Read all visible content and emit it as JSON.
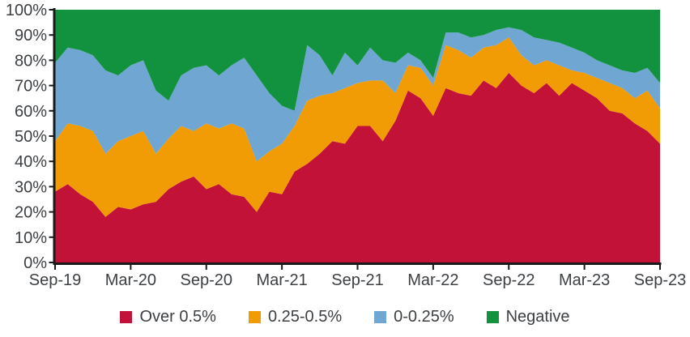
{
  "chart_data": {
    "type": "area",
    "stacked": true,
    "percent": true,
    "title": "",
    "xlabel": "",
    "ylabel": "",
    "ylim": [
      0,
      100
    ],
    "grid": false,
    "legend_position": "bottom",
    "axis_color": "#1a1a1a",
    "label_color": "#3c4043",
    "y_ticks": [
      "0%",
      "10%",
      "20%",
      "30%",
      "40%",
      "50%",
      "60%",
      "70%",
      "80%",
      "90%",
      "100%"
    ],
    "x_tick_labels": [
      "Sep-19",
      "Mar-20",
      "Sep-20",
      "Mar-21",
      "Sep-21",
      "Mar-22",
      "Sep-22",
      "Mar-23",
      "Sep-23"
    ],
    "x": [
      "Sep-19",
      "Oct-19",
      "Nov-19",
      "Dec-19",
      "Jan-20",
      "Feb-20",
      "Mar-20",
      "Apr-20",
      "May-20",
      "Jun-20",
      "Jul-20",
      "Aug-20",
      "Sep-20",
      "Oct-20",
      "Nov-20",
      "Dec-20",
      "Jan-21",
      "Feb-21",
      "Mar-21",
      "Apr-21",
      "May-21",
      "Jun-21",
      "Jul-21",
      "Aug-21",
      "Sep-21",
      "Oct-21",
      "Nov-21",
      "Dec-21",
      "Jan-22",
      "Feb-22",
      "Mar-22",
      "Apr-22",
      "May-22",
      "Jun-22",
      "Jul-22",
      "Aug-22",
      "Sep-22",
      "Oct-22",
      "Nov-22",
      "Dec-22",
      "Jan-23",
      "Feb-23",
      "Mar-23",
      "Apr-23",
      "May-23",
      "Jun-23",
      "Jul-23",
      "Aug-23",
      "Sep-23"
    ],
    "series": [
      {
        "name": "Over 0.5%",
        "color": "#c31238",
        "values": [
          28,
          31,
          27,
          24,
          18,
          22,
          21,
          23,
          24,
          29,
          32,
          34,
          29,
          31,
          27,
          26,
          20,
          28,
          27,
          36,
          39,
          43,
          48,
          47,
          54,
          54,
          48,
          56,
          68,
          65,
          58,
          69,
          67,
          66,
          72,
          69,
          75,
          70,
          67,
          71,
          66,
          71,
          68,
          65,
          60,
          59,
          55,
          52,
          47
        ]
      },
      {
        "name": "0.25-0.5%",
        "color": "#f29c05",
        "values": [
          20,
          24,
          27,
          28,
          25,
          26,
          29,
          29,
          19,
          20,
          22,
          18,
          26,
          22,
          28,
          27,
          20,
          16,
          20,
          18,
          25,
          23,
          19,
          22,
          17,
          18,
          24,
          11,
          10,
          12,
          12,
          17,
          17,
          15,
          13,
          17,
          14,
          12,
          11,
          9,
          12,
          5,
          7,
          8,
          11,
          10,
          10,
          16,
          14
        ]
      },
      {
        "name": "0-0.25%",
        "color": "#6fa6d2",
        "values": [
          31,
          30,
          30,
          30,
          33,
          26,
          28,
          28,
          25,
          15,
          20,
          25,
          23,
          21,
          23,
          28,
          34,
          23,
          15,
          6,
          22,
          16,
          7,
          14,
          7,
          13,
          8,
          12,
          5,
          3,
          3,
          5,
          7,
          8,
          5,
          6,
          4,
          10,
          11,
          8,
          9,
          9,
          8,
          7,
          7,
          7,
          10,
          9,
          10
        ]
      },
      {
        "name": "Negative",
        "color": "#12923f",
        "values": [
          21,
          15,
          16,
          18,
          24,
          26,
          22,
          20,
          32,
          36,
          26,
          23,
          22,
          26,
          22,
          19,
          26,
          33,
          38,
          40,
          14,
          18,
          26,
          17,
          22,
          15,
          20,
          21,
          17,
          20,
          27,
          9,
          9,
          11,
          10,
          8,
          7,
          8,
          11,
          12,
          13,
          15,
          17,
          20,
          22,
          24,
          25,
          23,
          29
        ]
      }
    ]
  }
}
